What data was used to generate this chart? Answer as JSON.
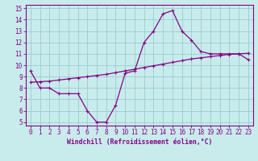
{
  "xlabel": "Windchill (Refroidissement éolien,°C)",
  "xlim": [
    -0.5,
    23.5
  ],
  "ylim": [
    4.7,
    15.3
  ],
  "xticks": [
    0,
    1,
    2,
    3,
    4,
    5,
    6,
    7,
    8,
    9,
    10,
    11,
    12,
    13,
    14,
    15,
    16,
    17,
    18,
    19,
    20,
    21,
    22,
    23
  ],
  "yticks": [
    5,
    6,
    7,
    8,
    9,
    10,
    11,
    12,
    13,
    14,
    15
  ],
  "bg_color": "#c8ecec",
  "line_color": "#880088",
  "grid_color": "#99cccc",
  "series1_x": [
    0,
    1,
    2,
    3,
    4,
    5,
    6,
    7,
    8,
    9,
    10,
    11,
    12,
    13,
    14,
    15,
    16,
    17,
    18,
    19,
    20,
    21,
    22,
    23
  ],
  "series1_y": [
    9.5,
    8.0,
    8.0,
    7.5,
    7.5,
    7.5,
    6.0,
    5.0,
    5.0,
    6.5,
    9.3,
    9.5,
    12.0,
    13.0,
    14.5,
    14.8,
    13.0,
    12.2,
    11.2,
    11.0,
    11.0,
    11.0,
    11.0,
    10.5
  ],
  "series2_x": [
    0,
    1,
    2,
    3,
    4,
    5,
    6,
    7,
    8,
    9,
    10,
    11,
    12,
    13,
    14,
    15,
    16,
    17,
    18,
    19,
    20,
    21,
    22,
    23
  ],
  "series2_y": [
    8.5,
    8.55,
    8.6,
    8.7,
    8.8,
    8.9,
    9.0,
    9.1,
    9.2,
    9.35,
    9.5,
    9.65,
    9.8,
    9.95,
    10.1,
    10.25,
    10.4,
    10.55,
    10.65,
    10.75,
    10.85,
    10.95,
    11.0,
    11.05
  ],
  "marker": "+",
  "markersize": 3,
  "linewidth": 0.9,
  "tick_fontsize": 5.5,
  "xlabel_fontsize": 5.8
}
